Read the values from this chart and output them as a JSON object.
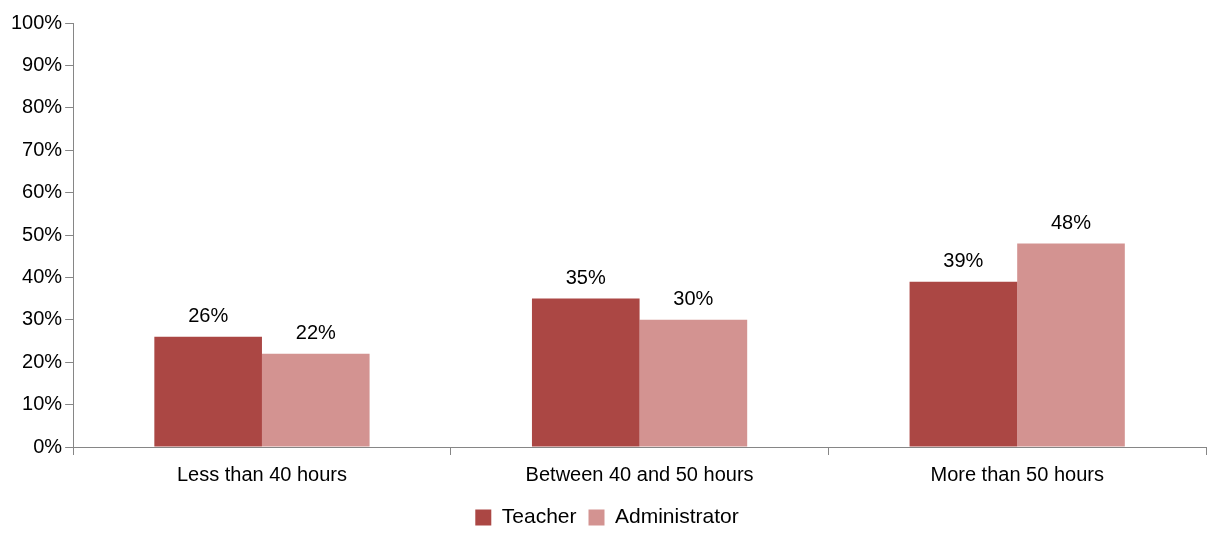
{
  "chart_data": {
    "type": "bar",
    "categories": [
      "Less than 40 hours",
      "Between 40 and 50 hours",
      "More than 50 hours"
    ],
    "series": [
      {
        "name": "Teacher",
        "color": "#ab4744",
        "values": [
          26,
          35,
          39
        ],
        "value_labels": [
          "26%",
          "35%",
          "39%"
        ]
      },
      {
        "name": "Administrator",
        "color": "#d39391",
        "values": [
          22,
          30,
          48
        ],
        "value_labels": [
          "22%",
          "30%",
          "48%"
        ]
      }
    ],
    "ylim": [
      0,
      100
    ],
    "yticks": [
      {
        "value": 0,
        "label": "0%"
      },
      {
        "value": 10,
        "label": "10%"
      },
      {
        "value": 20,
        "label": "20%"
      },
      {
        "value": 30,
        "label": "30%"
      },
      {
        "value": 40,
        "label": "40%"
      },
      {
        "value": 50,
        "label": "50%"
      },
      {
        "value": 60,
        "label": "60%"
      },
      {
        "value": 70,
        "label": "70%"
      },
      {
        "value": 80,
        "label": "80%"
      },
      {
        "value": 90,
        "label": "90%"
      },
      {
        "value": 100,
        "label": "100%"
      }
    ],
    "grid": false,
    "legend": "bottom"
  }
}
